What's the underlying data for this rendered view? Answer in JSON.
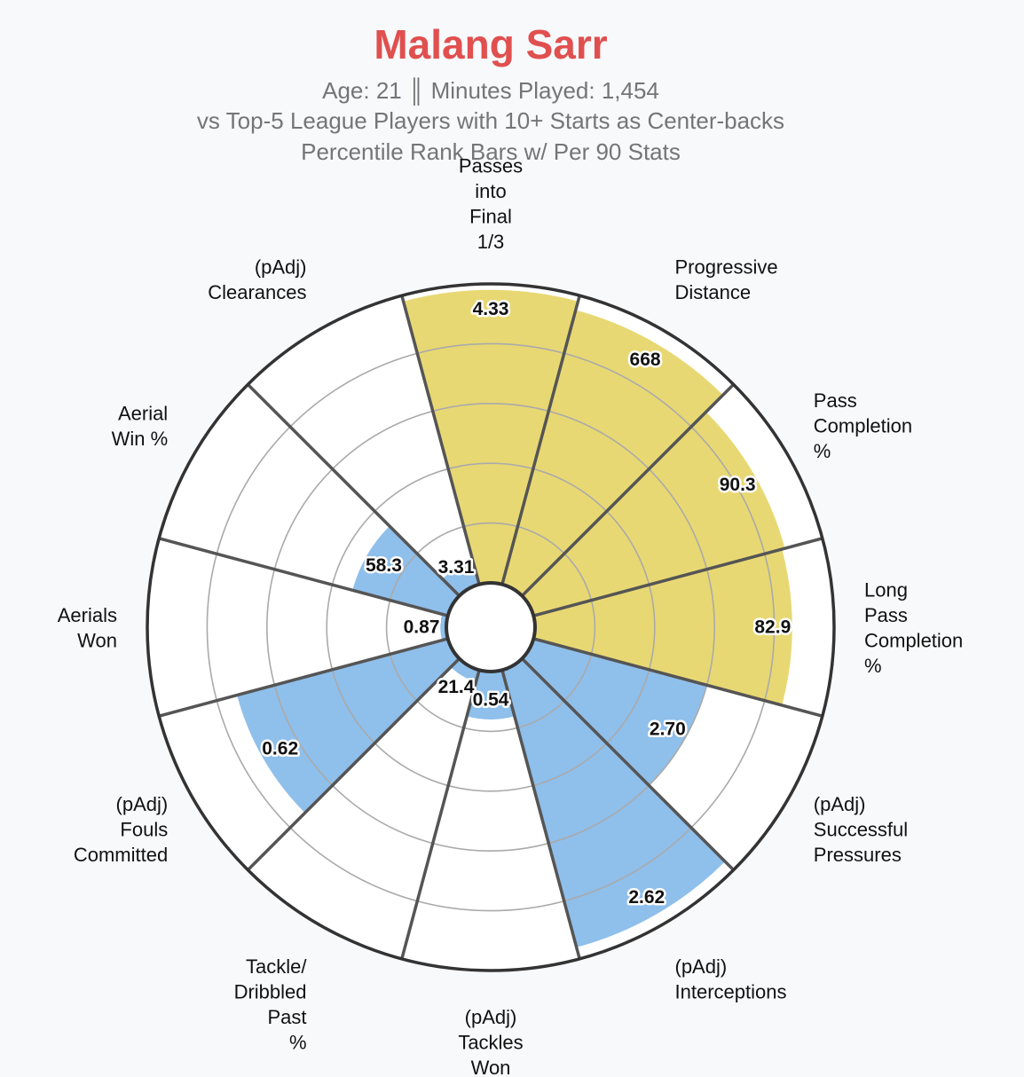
{
  "header": {
    "title": "Malang Sarr",
    "subtitle_line1": "Age: 21 ║ Minutes Played: 1,454",
    "subtitle_line2": "vs Top-5 League Players with 10+ Starts as Center-backs",
    "subtitle_line3": "Percentile Rank Bars w/ Per 90 Stats"
  },
  "colors": {
    "title": "#e0504f",
    "passing": "#e8d873",
    "defending": "#8fbfeb",
    "background": "#f8f9fb",
    "spokes": "#555555",
    "grid": "#aaaaaa",
    "outer_ring": "#333333"
  },
  "chart_data": {
    "type": "polar-bar",
    "title": "Malang Sarr",
    "radial_range": [
      0,
      100
    ],
    "grid_rings": [
      20,
      40,
      60,
      80,
      100
    ],
    "categories": [
      {
        "label": [
          "Passes",
          "into",
          "Final",
          "1/3"
        ],
        "value_text": "4.33",
        "percentile": 98,
        "group": "passing"
      },
      {
        "label": [
          "Progressive",
          "Distance"
        ],
        "value_text": "668",
        "percentile": 95,
        "group": "passing"
      },
      {
        "label": [
          "Pass",
          "Completion",
          "%"
        ],
        "value_text": "90.3",
        "percentile": 87,
        "group": "passing"
      },
      {
        "label": [
          "Long",
          "Pass",
          "Completion",
          "%"
        ],
        "value_text": "82.9",
        "percentile": 86,
        "group": "passing"
      },
      {
        "label": [
          "(pAdj)",
          "Successful",
          "Pressures"
        ],
        "value_text": "2.70",
        "percentile": 60,
        "group": "defending"
      },
      {
        "label": [
          "(pAdj)",
          "Interceptions"
        ],
        "value_text": "2.62",
        "percentile": 96,
        "group": "defending"
      },
      {
        "label": [
          "(pAdj)",
          "Tackles",
          "Won"
        ],
        "value_text": "0.54",
        "percentile": 16,
        "group": "defending"
      },
      {
        "label": [
          "Tackle/",
          "Dribbled",
          "Past",
          "%"
        ],
        "value_text": "21.4",
        "percentile": 4,
        "group": "defending"
      },
      {
        "label": [
          "(pAdj)",
          "Fouls",
          "Committed"
        ],
        "value_text": "0.62",
        "percentile": 73,
        "group": "defending"
      },
      {
        "label": [
          "Aerials",
          "Won"
        ],
        "value_text": "0.87",
        "percentile": 2,
        "group": "defending"
      },
      {
        "label": [
          "Aerial",
          "Win %"
        ],
        "value_text": "58.3",
        "percentile": 33,
        "group": "defending"
      },
      {
        "label": [
          "(pAdj)",
          "Clearances"
        ],
        "value_text": "3.31",
        "percentile": 8,
        "group": "defending"
      }
    ]
  }
}
